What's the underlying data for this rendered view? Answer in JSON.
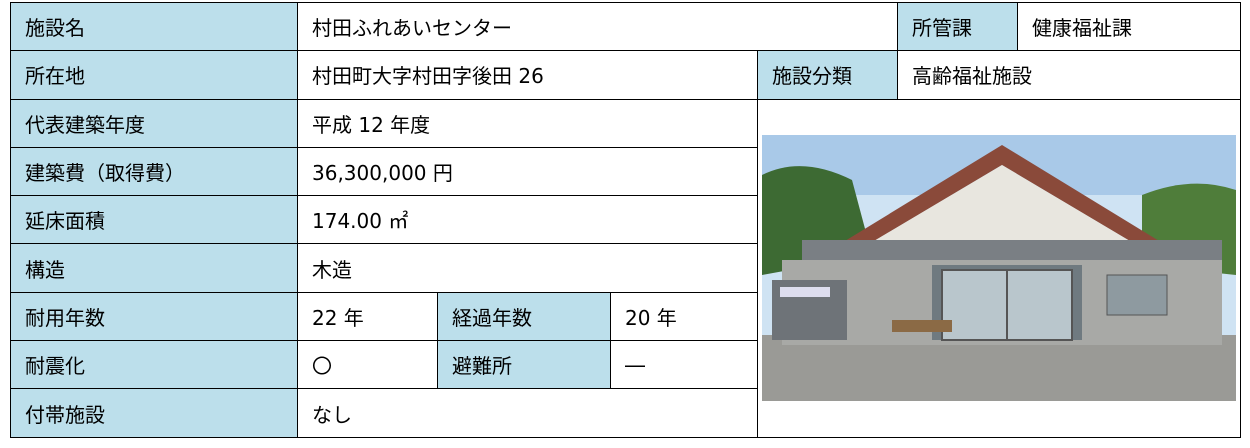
{
  "table": {
    "rows": [
      [
        "施設名",
        "村田ふれあいセンター",
        "所管課",
        "健康福祉課"
      ],
      [
        "所在地",
        "村田町大字村田字後田 26",
        "施設分類",
        "高齢福祉施設"
      ],
      [
        "代表建築年度",
        "平成 12 年度"
      ],
      [
        "建築費（取得費）",
        "36,300,000 円"
      ],
      [
        "延床面積",
        "174.00 ㎡"
      ],
      [
        "構造",
        "木造"
      ],
      [
        "耐用年数",
        "22 年",
        "経過年数",
        "20 年"
      ],
      [
        "耐震化",
        "〇",
        "避難所",
        "―"
      ],
      [
        "付帯施設",
        "なし"
      ]
    ]
  }
}
